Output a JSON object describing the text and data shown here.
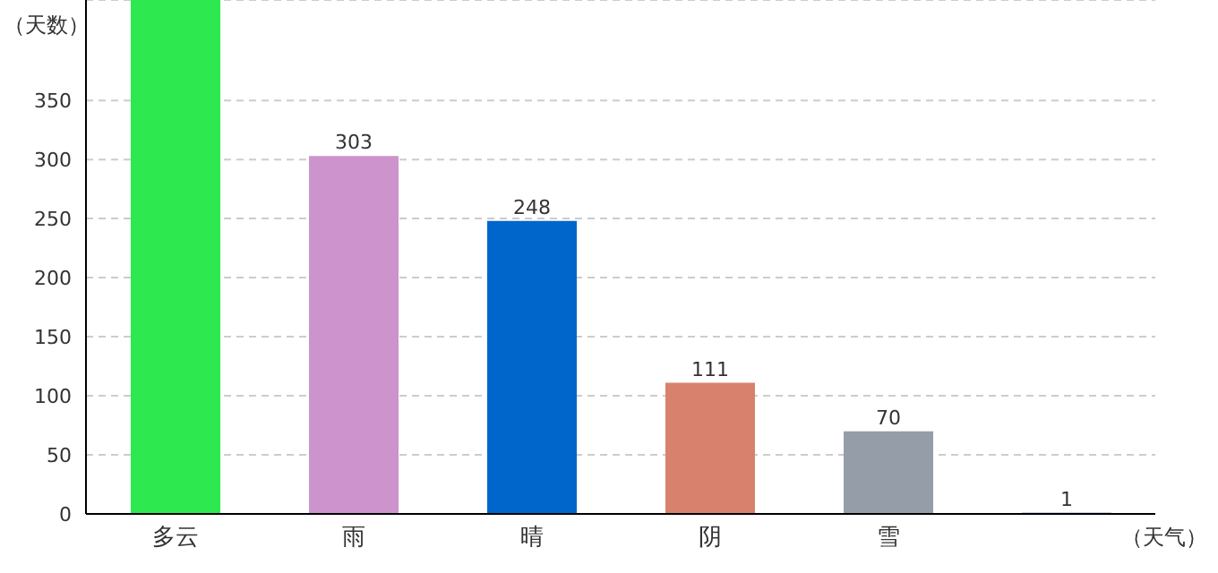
{
  "chart_data": {
    "type": "bar",
    "xlabel": "（天气）",
    "ylabel": "（天数）",
    "categories": [
      "多云",
      "雨",
      "晴",
      "阴",
      "雪",
      null
    ],
    "values": [
      435,
      303,
      248,
      111,
      70,
      1
    ],
    "colors": [
      "#2de84f",
      "#cc93cc",
      "#0066cc",
      "#d8826e",
      "#959ea8",
      "#1f4e9a"
    ],
    "value_labels": [
      null,
      "303",
      "248",
      "111",
      "70",
      "1"
    ],
    "ylim": [
      0,
      435
    ],
    "yticks": [
      0,
      50,
      100,
      150,
      200,
      250,
      300,
      350
    ],
    "grid": "y"
  }
}
